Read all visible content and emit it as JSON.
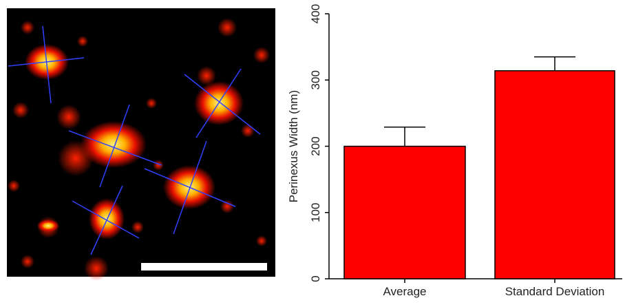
{
  "chart_data": {
    "type": "bar",
    "y_label": "Perinexus Width (nm)",
    "categories": [
      "Average",
      "Standard Deviation"
    ],
    "values": [
      200,
      314
    ],
    "errors": [
      29,
      21
    ],
    "color": "#ff0000",
    "ylim": [
      0,
      400
    ],
    "yticks": [
      0,
      100,
      200,
      300,
      400
    ]
  }
}
